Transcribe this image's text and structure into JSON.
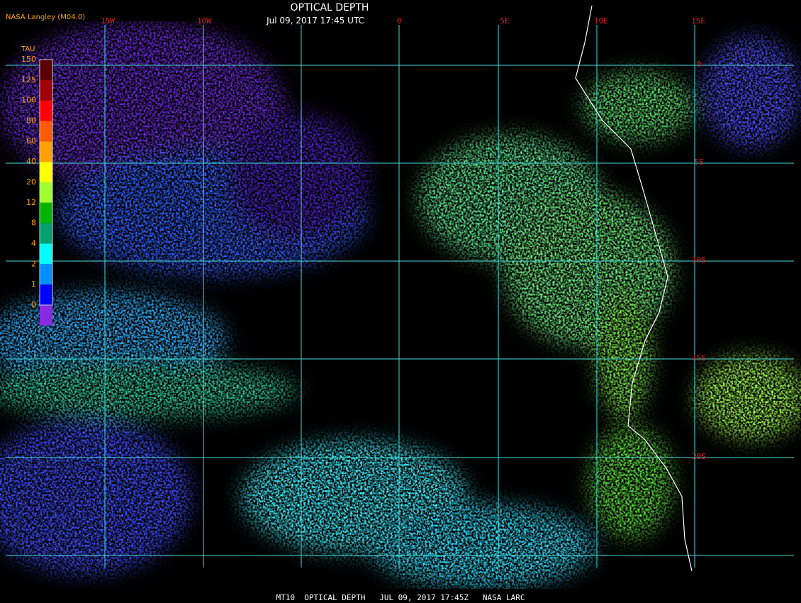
{
  "header": {
    "title": "OPTICAL DEPTH",
    "datetime": "Jul 09, 2017 17:45 UTC",
    "credit": "NASA Langley (M04.0)"
  },
  "legend": {
    "title": "TAU",
    "labels": [
      "150",
      "125",
      "100",
      "80",
      "60",
      "40",
      "20",
      "12",
      "8",
      "4",
      "2",
      "1",
      "0"
    ],
    "colors": [
      "#5a0000",
      "#a00000",
      "#ff0000",
      "#ff5a00",
      "#ffa000",
      "#ffff00",
      "#a0ff30",
      "#00b400",
      "#00a070",
      "#00ffff",
      "#0090ff",
      "#0000ff",
      "#8a2be2"
    ]
  },
  "grid": {
    "lon_labels": [
      "15W",
      "10W",
      "0",
      "5E",
      "10E",
      "15E"
    ],
    "lat_labels": [
      "0",
      "5S",
      "10S",
      "15S",
      "20S"
    ]
  },
  "footer": "MT10  OPTICAL DEPTH   JUL 09, 2017 17:45Z   NASA LARC"
}
